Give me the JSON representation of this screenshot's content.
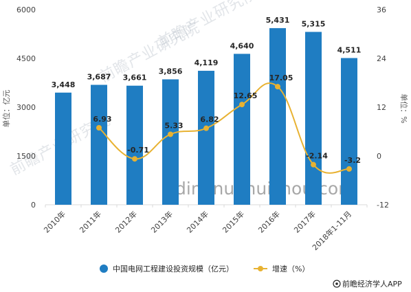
{
  "chart_data": {
    "type": "bar",
    "categories": [
      "2010年",
      "2011年",
      "2012年",
      "2013年",
      "2014年",
      "2015年",
      "2016年",
      "2017年",
      "2018年1-11月"
    ],
    "series": [
      {
        "name": "中国电网工程建设投资规模（亿元）",
        "type": "bar",
        "axis": "left",
        "color": "#1f7dc2",
        "values": [
          3448,
          3687,
          3661,
          3856,
          4119,
          4640,
          5431,
          5315,
          4511
        ],
        "labels": [
          "3,448",
          "3,687",
          "3,661",
          "3,856",
          "4,119",
          "4,640",
          "5,431",
          "5,315",
          "4,511"
        ]
      },
      {
        "name": "增速（%）",
        "type": "line",
        "axis": "right",
        "color": "#e8b232",
        "values": [
          null,
          6.93,
          -0.71,
          5.33,
          6.82,
          12.65,
          17.05,
          -2.14,
          -3.2
        ],
        "labels": [
          "",
          "6.93",
          "-0.71",
          "5.33",
          "6.82",
          "12.65",
          "17.05",
          "-2.14",
          "-3.2"
        ]
      }
    ],
    "y_left": {
      "label": "单位：亿元",
      "range": [
        0,
        6000
      ],
      "ticks": [
        0,
        1500,
        3000,
        4500,
        6000
      ]
    },
    "y_right": {
      "label": "单位：%",
      "range": [
        -12,
        36
      ],
      "ticks": [
        -12,
        0,
        12,
        24,
        36
      ]
    },
    "grid": false,
    "legend_position": "bottom"
  },
  "watermarks": [
    "前瞻产业研究院",
    "前瞻产业研究院",
    "前瞻产业研究院",
    "dingnuohuishou.com"
  ],
  "credit": "前瞻经济学人APP",
  "credit_icon": "qianzhan-logo-icon"
}
